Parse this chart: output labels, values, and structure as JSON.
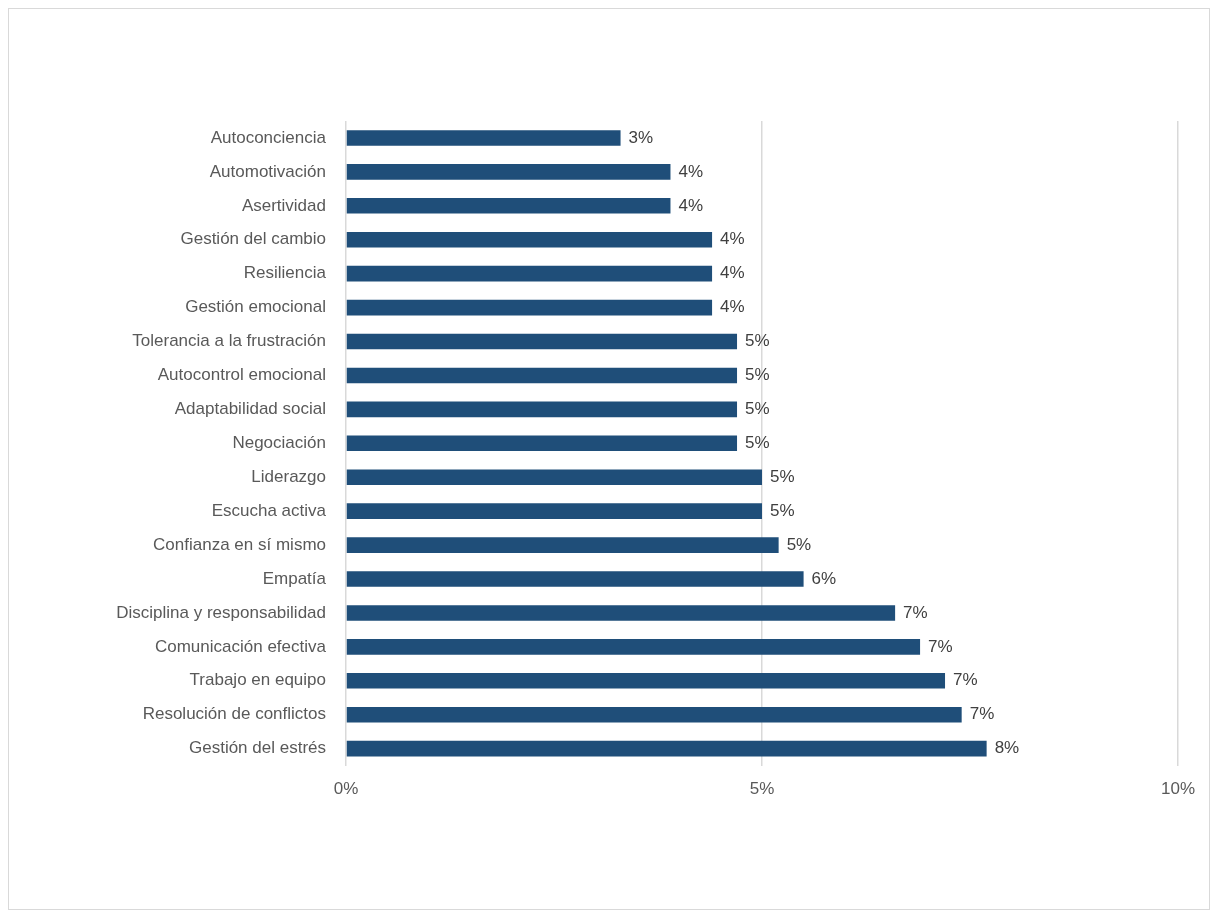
{
  "chart_data": {
    "type": "bar",
    "orientation": "horizontal",
    "categories": [
      "Autoconciencia",
      "Automotivación",
      "Asertividad",
      "Gestión del cambio",
      "Resiliencia",
      "Gestión emocional",
      "Tolerancia a la frustración",
      "Autocontrol emocional",
      "Adaptabilidad social",
      "Negociación",
      "Liderazgo",
      "Escucha activa",
      "Confianza en sí mismo",
      "Empatía",
      "Disciplina y responsabilidad",
      "Comunicación efectiva",
      "Trabajo en equipo",
      "Resolución de conflictos",
      "Gestión del estrés"
    ],
    "values": [
      3.3,
      3.9,
      3.9,
      4.4,
      4.4,
      4.4,
      4.7,
      4.7,
      4.7,
      4.7,
      5.0,
      5.0,
      5.2,
      5.5,
      6.6,
      6.9,
      7.2,
      7.4,
      7.7
    ],
    "value_labels": [
      "3%",
      "4%",
      "4%",
      "4%",
      "4%",
      "4%",
      "5%",
      "5%",
      "5%",
      "5%",
      "5%",
      "5%",
      "5%",
      "6%",
      "7%",
      "7%",
      "7%",
      "7%",
      "8%"
    ],
    "color": "#1f4e79",
    "xlim": [
      0,
      10
    ],
    "xticks": [
      {
        "value": 0,
        "label": "0%"
      },
      {
        "value": 5,
        "label": "5%"
      },
      {
        "value": 10,
        "label": "10%"
      }
    ],
    "grid": "x"
  }
}
